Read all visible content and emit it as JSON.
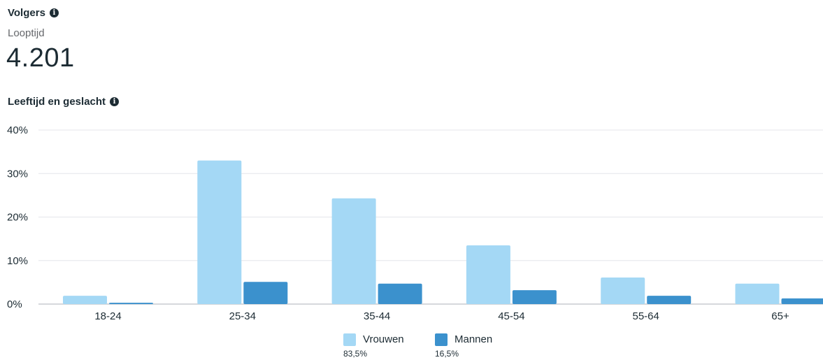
{
  "header": {
    "title": "Volgers",
    "subtitle": "Looptijd",
    "metric": "4.201"
  },
  "section": {
    "title": "Leeftijd en geslacht"
  },
  "icons": {
    "info": "info-icon"
  },
  "chart_data": {
    "type": "bar",
    "categories": [
      "18-24",
      "25-34",
      "35-44",
      "45-54",
      "55-64",
      "65+"
    ],
    "series": [
      {
        "name": "Vrouwen",
        "share": "83,5%",
        "color": "#a4d8f5",
        "values": [
          1.9,
          33.0,
          24.3,
          13.5,
          6.1,
          4.7
        ]
      },
      {
        "name": "Mannen",
        "share": "16,5%",
        "color": "#3b91cd",
        "values": [
          0.3,
          5.1,
          4.7,
          3.2,
          1.9,
          1.3
        ]
      }
    ],
    "ylim": [
      0,
      40
    ],
    "yticks": [
      0,
      10,
      20,
      30,
      40
    ],
    "ytick_labels": [
      "0%",
      "10%",
      "20%",
      "30%",
      "40%"
    ],
    "grid": true,
    "legend": "bottom-center"
  }
}
